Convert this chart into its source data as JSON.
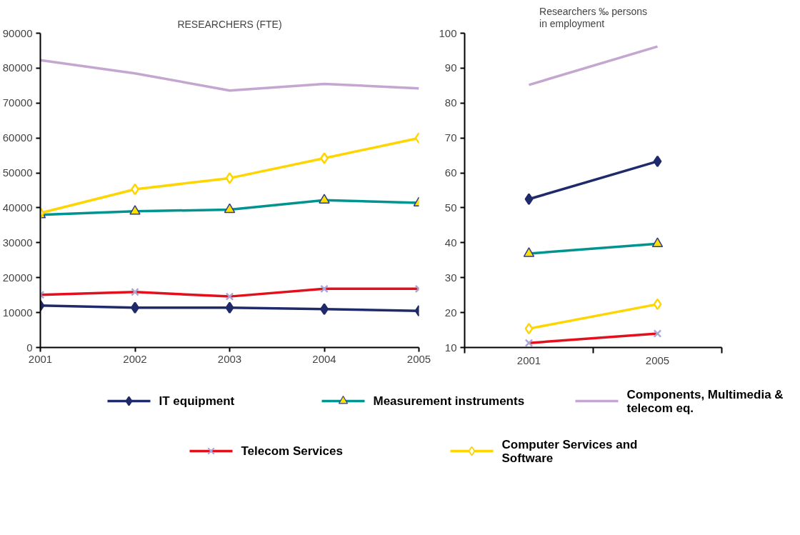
{
  "chart_data": [
    {
      "type": "line",
      "title": "RESEARCHERS (FTE)",
      "x": [
        2001,
        2002,
        2003,
        2004,
        2005
      ],
      "xlim": [
        2001,
        2005
      ],
      "xticks": [
        2001,
        2002,
        2003,
        2004,
        2005
      ],
      "ylim": [
        0,
        90000
      ],
      "yticks": [
        0,
        10000,
        20000,
        30000,
        40000,
        50000,
        60000,
        70000,
        80000,
        90000
      ],
      "grid": false,
      "legend": "bottom",
      "series": [
        {
          "name": "IT equipment",
          "color": "#1f2a6b",
          "marker": "diamond",
          "values": [
            12000,
            11400,
            11400,
            11000,
            10500
          ]
        },
        {
          "name": "Measurement instruments",
          "color": "#009490",
          "marker": "triangle",
          "values": [
            38000,
            39000,
            39500,
            42200,
            41400
          ]
        },
        {
          "name": "Components, Multimedia & telecom eq.",
          "color": "#c4a6d0",
          "marker": "none",
          "values": [
            82300,
            78500,
            73600,
            75500,
            74200
          ]
        },
        {
          "name": "Telecom Services",
          "color": "#e3101c",
          "marker": "cross",
          "values": [
            15100,
            15900,
            14600,
            16800,
            16800
          ]
        },
        {
          "name": "Computer Services and Software",
          "color": "#ffd500",
          "marker": "diamond",
          "values": [
            38500,
            45300,
            48500,
            54200,
            60000
          ]
        }
      ]
    },
    {
      "type": "line",
      "title": "Researchers ‰ persons in employment",
      "categories": [
        "2001",
        "2005"
      ],
      "ylim": [
        10,
        100
      ],
      "yticks": [
        10,
        20,
        30,
        40,
        50,
        60,
        70,
        80,
        90,
        100
      ],
      "grid": false,
      "series": [
        {
          "color": "#1f2a6b",
          "marker": "diamond",
          "values": [
            52.5,
            63.3
          ]
        },
        {
          "color": "#009490",
          "marker": "triangle",
          "values": [
            36.9,
            39.7
          ]
        },
        {
          "color": "#c4a6d0",
          "marker": "none",
          "values": [
            85.2,
            96.2
          ]
        },
        {
          "color": "#e3101c",
          "marker": "cross",
          "values": [
            11.3,
            14.0
          ]
        },
        {
          "color": "#ffd500",
          "marker": "diamond",
          "values": [
            15.4,
            22.4
          ]
        }
      ]
    }
  ]
}
